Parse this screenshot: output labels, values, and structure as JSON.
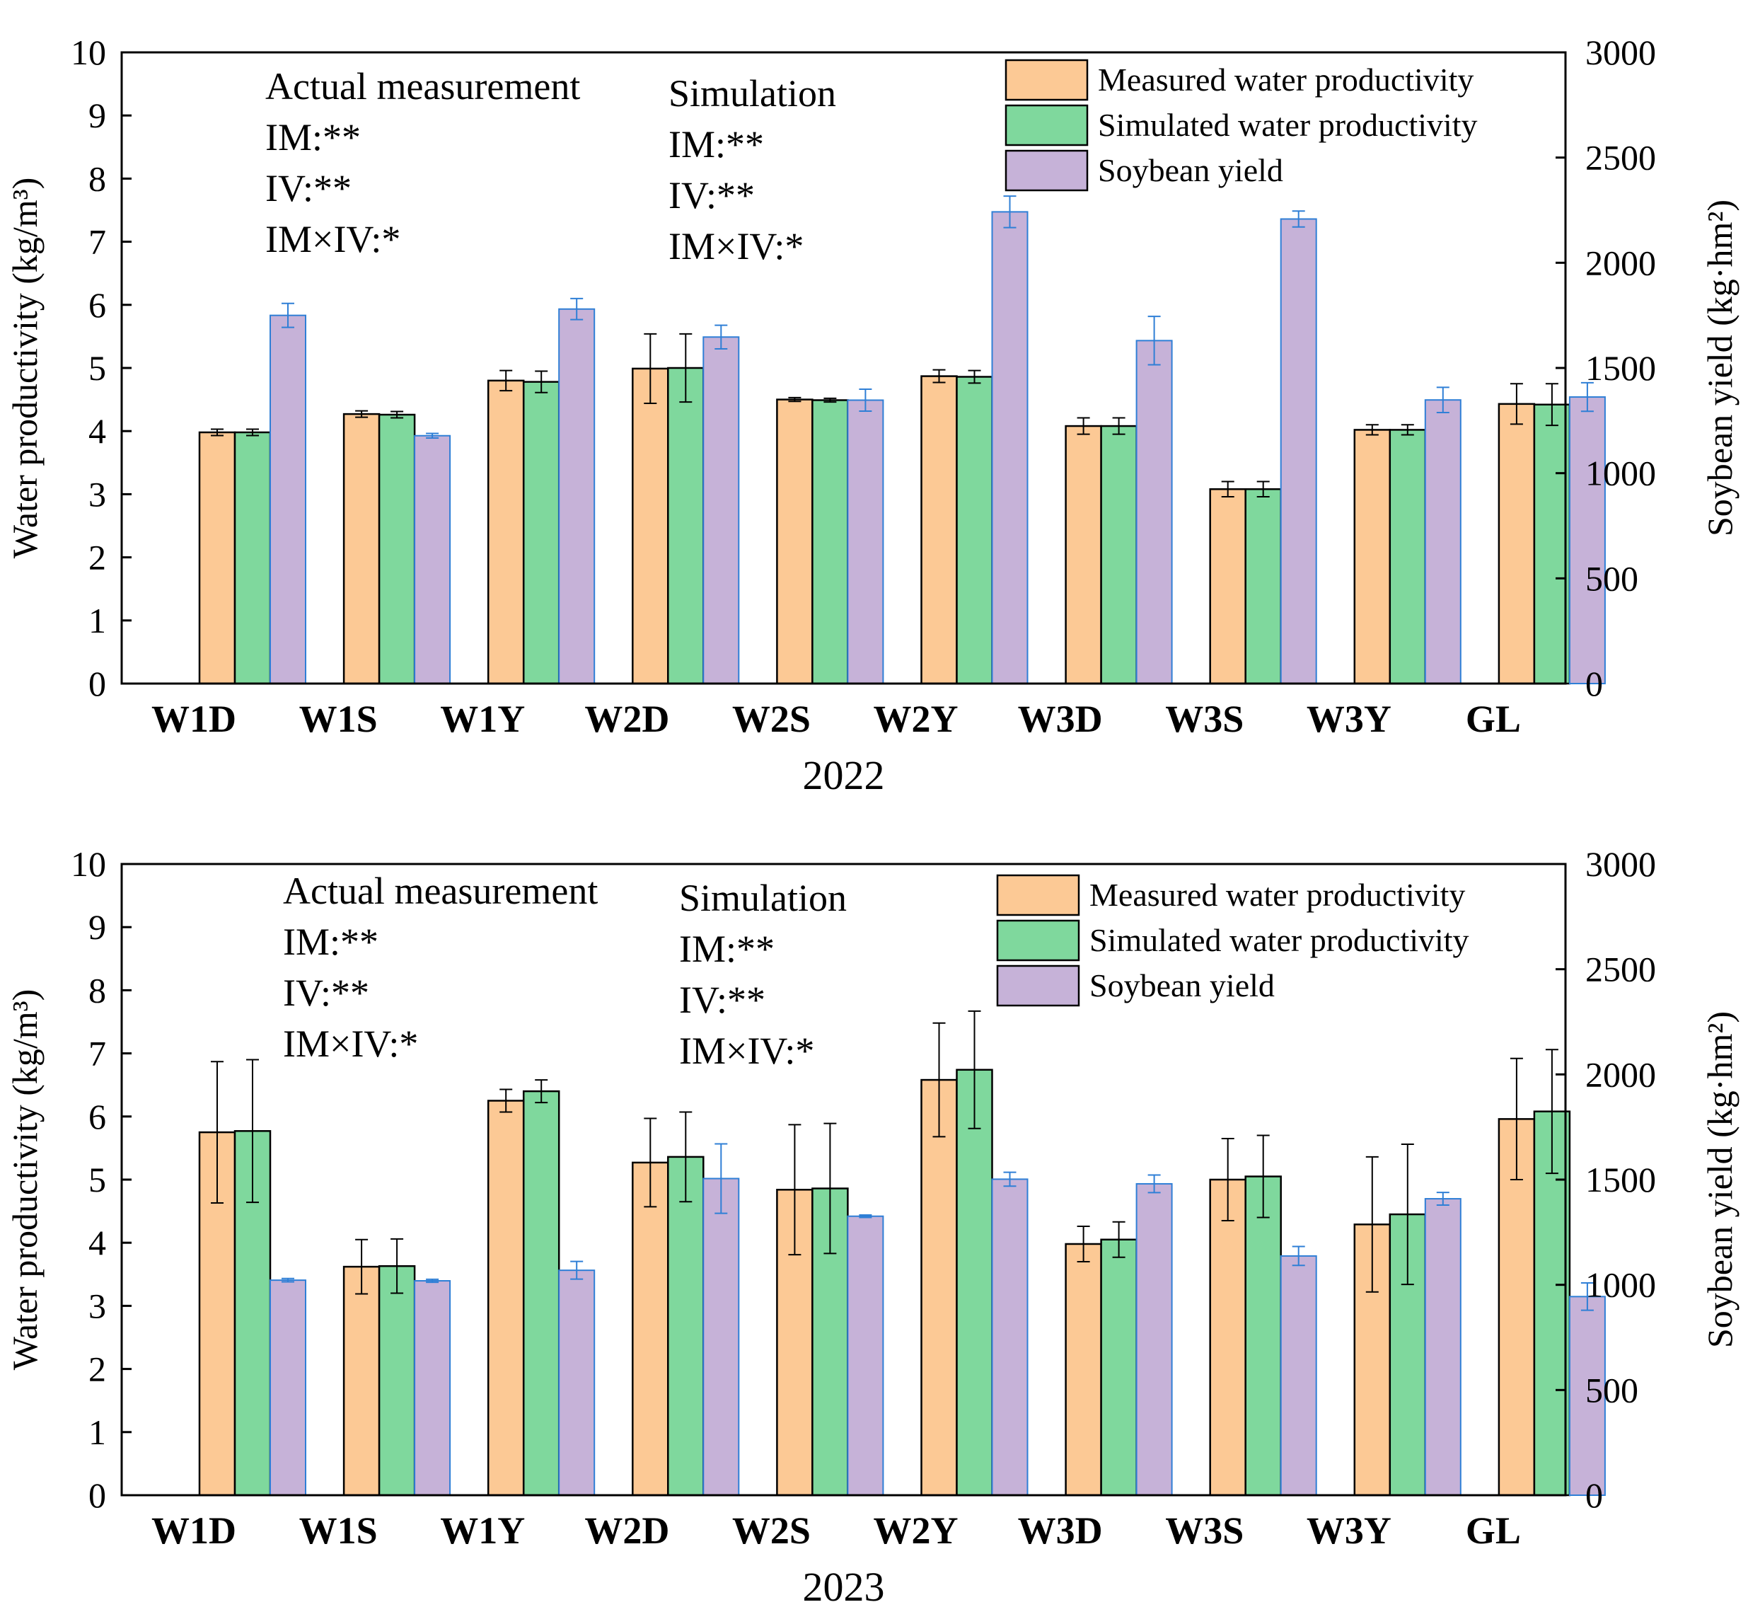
{
  "chart_data": [
    {
      "type": "bar",
      "year": "2022",
      "categories": [
        "W1D",
        "W1S",
        "W1Y",
        "W2D",
        "W2S",
        "W2Y",
        "W3D",
        "W3S",
        "W3Y",
        "GL"
      ],
      "ylabel": "Water productivity (kg/m³)",
      "y2label": "Soybean yield (kg·hm²)",
      "ylim": [
        0,
        10
      ],
      "y2lim": [
        0,
        3000
      ],
      "yticks": [
        "0",
        "1",
        "2",
        "3",
        "4",
        "5",
        "6",
        "7",
        "8",
        "9",
        "10"
      ],
      "y2ticks": [
        "0",
        "500",
        "1000",
        "1500",
        "2000",
        "2500",
        "3000"
      ],
      "legend": [
        "Measured water productivity",
        "Simulated water productivity",
        "Soybean yield"
      ],
      "series": [
        {
          "name": "Measured water productivity",
          "axis": "left",
          "color": "#fcc995",
          "values": [
            3.98,
            4.27,
            4.8,
            4.99,
            4.5,
            4.87,
            4.08,
            3.08,
            4.02,
            4.43
          ],
          "errors": [
            0.05,
            0.05,
            0.16,
            0.55,
            0.03,
            0.1,
            0.13,
            0.12,
            0.08,
            0.32
          ]
        },
        {
          "name": "Simulated water productivity",
          "axis": "left",
          "color": "#7fd89d",
          "values": [
            3.98,
            4.26,
            4.78,
            5.0,
            4.49,
            4.86,
            4.08,
            3.08,
            4.02,
            4.42
          ],
          "errors": [
            0.05,
            0.05,
            0.17,
            0.54,
            0.03,
            0.1,
            0.13,
            0.12,
            0.08,
            0.33
          ]
        },
        {
          "name": "Soybean yield",
          "axis": "right",
          "color": "#c6b2d8",
          "values": [
            1750,
            1178,
            1780,
            1647,
            1347,
            2242,
            1630,
            2208,
            1348,
            1362
          ],
          "errors": [
            57,
            11,
            50,
            56,
            52,
            75,
            115,
            38,
            60,
            68
          ]
        }
      ],
      "annotations": {
        "measured": {
          "title": "Actual measurement",
          "lines": [
            "IM:**",
            "IV:**",
            "IM×IV:*"
          ]
        },
        "simulated": {
          "title": "Simulation",
          "lines": [
            "IM:**",
            "IV:**",
            "IM×IV:*"
          ]
        }
      }
    },
    {
      "type": "bar",
      "year": "2023",
      "categories": [
        "W1D",
        "W1S",
        "W1Y",
        "W2D",
        "W2S",
        "W2Y",
        "W3D",
        "W3S",
        "W3Y",
        "GL"
      ],
      "ylabel": "Water productivity (kg/m³)",
      "y2label": "Soybean yield (kg·hm²)",
      "ylim": [
        0,
        10
      ],
      "y2lim": [
        0,
        3000
      ],
      "yticks": [
        "0",
        "1",
        "2",
        "3",
        "4",
        "5",
        "6",
        "7",
        "8",
        "9",
        "10"
      ],
      "y2ticks": [
        "0",
        "500",
        "1000",
        "1500",
        "2000",
        "2500",
        "3000"
      ],
      "legend": [
        "Measured water productivity",
        "Simulated water productivity",
        "Soybean yield"
      ],
      "series": [
        {
          "name": "Measured water productivity",
          "axis": "left",
          "color": "#fcc995",
          "values": [
            5.75,
            3.62,
            6.25,
            5.27,
            4.84,
            6.58,
            3.98,
            5.0,
            4.29,
            5.96
          ],
          "errors": [
            1.12,
            0.43,
            0.18,
            0.7,
            1.03,
            0.9,
            0.28,
            0.65,
            1.07,
            0.96
          ]
        },
        {
          "name": "Simulated water productivity",
          "axis": "left",
          "color": "#7fd89d",
          "values": [
            5.77,
            3.63,
            6.4,
            5.36,
            4.86,
            6.74,
            4.05,
            5.05,
            4.45,
            6.08
          ],
          "errors": [
            1.13,
            0.43,
            0.18,
            0.71,
            1.03,
            0.93,
            0.28,
            0.65,
            1.11,
            0.98
          ]
        },
        {
          "name": "Soybean yield",
          "axis": "right",
          "color": "#c6b2d8",
          "values": [
            1022,
            1019,
            1069,
            1505,
            1326,
            1502,
            1480,
            1137,
            1409,
            944
          ],
          "errors": [
            8,
            7,
            42,
            165,
            6,
            33,
            42,
            45,
            30,
            65
          ]
        }
      ],
      "annotations": {
        "measured": {
          "title": "Actual measurement",
          "lines": [
            "IM:**",
            "IV:**",
            "IM×IV:*"
          ]
        },
        "simulated": {
          "title": "Simulation",
          "lines": [
            "IM:**",
            "IV:**",
            "IM×IV:*"
          ]
        }
      }
    }
  ]
}
